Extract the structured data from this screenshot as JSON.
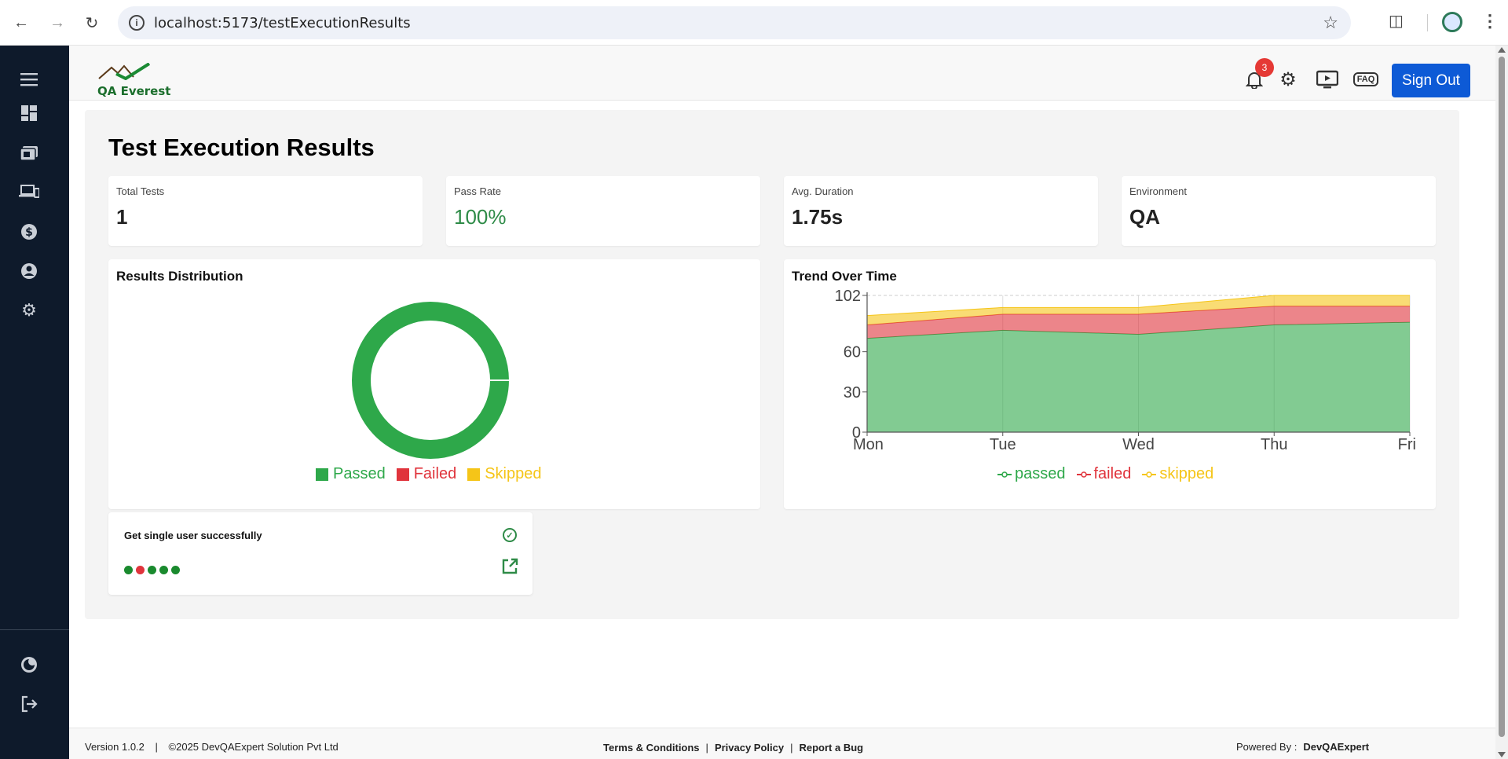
{
  "browser": {
    "url": "localhost:5173/testExecutionResults",
    "icons": [
      "back-icon",
      "forward-icon",
      "reload-icon",
      "info-icon",
      "star-icon",
      "extensions-icon",
      "profile-icon",
      "menu-icon"
    ]
  },
  "sidebar": {
    "items": [
      "menu-icon",
      "dashboard-icon",
      "test-runs-icon",
      "devices-icon",
      "billing-icon",
      "account-icon",
      "settings-icon"
    ],
    "bottom": [
      "theme-icon",
      "logout-icon"
    ]
  },
  "header": {
    "logo_text": "QA Everest",
    "notification_count": "3",
    "faq_label": "FAQ",
    "sign_out_label": "Sign Out"
  },
  "page": {
    "title": "Test Execution Results"
  },
  "stats": [
    {
      "label": "Total Tests",
      "value": "1"
    },
    {
      "label": "Pass Rate",
      "value": "100%"
    },
    {
      "label": "Avg. Duration",
      "value": "1.75s"
    },
    {
      "label": "Environment",
      "value": "QA"
    }
  ],
  "distribution": {
    "title": "Results Distribution",
    "legend": [
      "Passed",
      "Failed",
      "Skipped"
    ]
  },
  "trend": {
    "title": "Trend Over Time",
    "legend": [
      "passed",
      "failed",
      "skipped"
    ]
  },
  "colors": {
    "passed": "#2ea84a",
    "failed": "#e0343c",
    "skipped": "#f5c518",
    "sidebar": "#0e1a2b",
    "primary": "#0d5ad6"
  },
  "chart_data": [
    {
      "type": "pie",
      "title": "Results Distribution",
      "categories": [
        "Passed",
        "Failed",
        "Skipped"
      ],
      "values": [
        1,
        0,
        0
      ]
    },
    {
      "type": "area",
      "title": "Trend Over Time",
      "categories": [
        "Mon",
        "Tue",
        "Wed",
        "Thu",
        "Fri"
      ],
      "stacked": true,
      "yticks": [
        0,
        30,
        60,
        102
      ],
      "ylim": [
        0,
        102
      ],
      "series": [
        {
          "name": "passed",
          "values": [
            70,
            76,
            73,
            80,
            82
          ]
        },
        {
          "name": "failed",
          "values": [
            10,
            12,
            15,
            14,
            12
          ]
        },
        {
          "name": "skipped",
          "values": [
            7,
            5,
            5,
            8,
            8
          ]
        }
      ],
      "legend_position": "bottom",
      "grid": true
    }
  ],
  "test_result": {
    "name": "Get single user successfully",
    "history": [
      "pass",
      "fail",
      "pass",
      "pass",
      "pass"
    ],
    "status_icon": "check-circle-icon",
    "link_icon": "external-link-icon"
  },
  "footer": {
    "version": "Version 1.0.2",
    "copyright": "©2025 DevQAExpert Solution Pvt Ltd",
    "terms": "Terms & Conditions",
    "privacy": "Privacy Policy",
    "report_bug": "Report a Bug",
    "powered_by_label": "Powered By :",
    "powered_by": "DevQAExpert"
  }
}
